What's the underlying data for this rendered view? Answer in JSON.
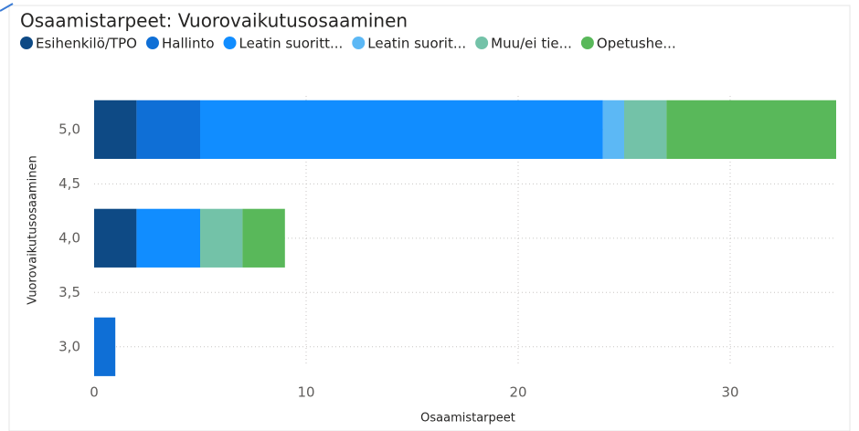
{
  "chart_data": {
    "type": "stacked-barh",
    "title": "Osaamistarpeet: Vuorovaikutusosaaminen",
    "xlabel": "Osaamistarpeet",
    "ylabel": "Vuorovaikutusosaaminen",
    "y": [
      5,
      4,
      3
    ],
    "series": [
      {
        "name": "Esihenkilö/TPO",
        "color": "#0E4A85",
        "values": [
          2,
          2,
          0
        ]
      },
      {
        "name": "Hallinto",
        "color": "#0F6FD6",
        "values": [
          3,
          0,
          1
        ]
      },
      {
        "name": "Leatin suoritt...",
        "color": "#118DFF",
        "values": [
          19,
          3,
          0
        ]
      },
      {
        "name": "Leatin suorit...",
        "color": "#5CB8F5",
        "values": [
          1,
          0,
          0
        ]
      },
      {
        "name": "Muu/ei tie...",
        "color": "#73C2A8",
        "values": [
          2,
          2,
          0
        ]
      },
      {
        "name": "Opetushe...",
        "color": "#59B85A",
        "values": [
          8,
          2,
          0
        ]
      }
    ],
    "xlim": [
      0,
      35
    ],
    "xticks": [
      0,
      10,
      20,
      30
    ],
    "ylim": [
      2.83,
      5.31
    ],
    "yticks": [
      {
        "value": 5,
        "label": "5,0"
      },
      {
        "value": 4.5,
        "label": "4,5"
      },
      {
        "value": 4,
        "label": "4,0"
      },
      {
        "value": 3.5,
        "label": "3,5"
      },
      {
        "value": 3,
        "label": "3,0"
      }
    ],
    "bar_height": 0.54,
    "grid": true,
    "legend": "top"
  }
}
